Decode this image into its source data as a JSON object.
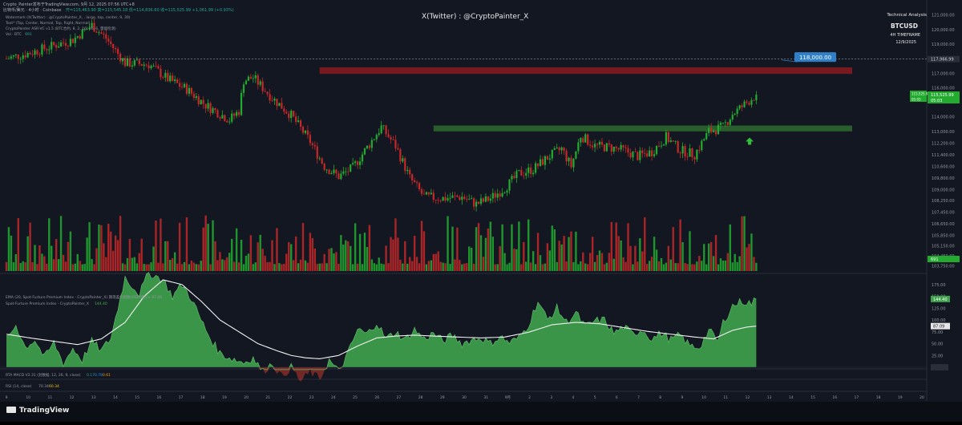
{
  "header": {
    "line1": "Crypto_Painter发布于TradingView.com, 9月 12, 2025 07:56 UTC+8",
    "symbol_line": "比特币/美元 · 4小时 · Coinbase",
    "symbol_values": "开=115,463.90  高=115,545.18  低=114,836.60  收=115,525.99 +1,061.99 (+0.93%)"
  },
  "legend": {
    "l1": "Watermark (X(Twitter) : @CryptoPainter_X, , large, top, center, 9, 30)",
    "l2": "Text* (Top, Center, Normal, Top, Right, Normal)",
    "l3": "CryptoPainter ASR-VC v1.5 (BTC合约, 8, 2, 16, 10, 6, 量能检测)",
    "l4_label": "Vol · BTC",
    "l4_value": "691"
  },
  "watermark": "X(Twitter) : @CryptoPainter_X",
  "info_box": {
    "title": "Technical Analysis",
    "symbol": "BTCUSD",
    "timeframe": "4H TIMEFRAME",
    "date": "12/9/2025"
  },
  "colors": {
    "bg": "#131722",
    "up": "#22ab2f",
    "down": "#c62828",
    "resistance_zone": "#8b1a1f",
    "support_zone": "#2e6b2e",
    "target_label": "#2f80c8",
    "ema_line": "#f2f2f2",
    "premium_fill": "#3fa34d",
    "premium_fill_neg": "#d23a2a"
  },
  "icons": {
    "up_arrow": "green-up-arrow-icon",
    "logo": "tradingview-logo-icon"
  },
  "chart_data": [
    {
      "type": "candlestick",
      "title": "比特币/美元 · 4小时 · Coinbase",
      "y_scale_ticks": [
        "121,000.00",
        "120,000.00",
        "119,000.00",
        "117,000.00",
        "116,000.00",
        "114,000.00",
        "113,000.00",
        "112,200.00",
        "111,400.00",
        "110,600.00",
        "109,800.00",
        "109,000.00",
        "108,250.00",
        "107,450.00",
        "106,650.00",
        "105,850.00",
        "105,150.00",
        "104,450.00",
        "103,750.00"
      ],
      "ylim": [
        103400,
        121700
      ],
      "x_ticks": [
        "9",
        "10",
        "11",
        "12",
        "13",
        "14",
        "15",
        "16",
        "17",
        "18",
        "19",
        "20",
        "21",
        "22",
        "23",
        "24",
        "25",
        "26",
        "27",
        "28",
        "29",
        "30",
        "31",
        "9月",
        "2",
        "3",
        "4",
        "5",
        "6",
        "7",
        "8",
        "9",
        "10",
        "11",
        "12",
        "13",
        "14",
        "15",
        "16",
        "17",
        "18",
        "19",
        "20"
      ],
      "price_markers": [
        {
          "label": "117,966.99",
          "value": 117966.99,
          "kind": "dashed-line"
        },
        {
          "label": "115,525.99",
          "value": 115525.99,
          "kind": "last-price"
        },
        {
          "label": "05:03",
          "kind": "countdown"
        },
        {
          "label": "691",
          "kind": "volume"
        }
      ],
      "zones": [
        {
          "name": "resistance",
          "from": 116950,
          "to": 117400,
          "color": "red"
        },
        {
          "name": "support",
          "from": 113000,
          "to": 113400,
          "color": "green"
        }
      ],
      "target_label": "118,000.00",
      "target": 118000,
      "candle_anchors": [
        [
          0,
          118000
        ],
        [
          10,
          118400
        ],
        [
          20,
          118900
        ],
        [
          28,
          119300
        ],
        [
          36,
          120300
        ],
        [
          42,
          119400
        ],
        [
          50,
          117700
        ],
        [
          60,
          117600
        ],
        [
          68,
          116600
        ],
        [
          76,
          115900
        ],
        [
          84,
          114800
        ],
        [
          94,
          113800
        ],
        [
          98,
          114400
        ],
        [
          100,
          116500
        ],
        [
          104,
          116700
        ],
        [
          112,
          115300
        ],
        [
          120,
          114100
        ],
        [
          128,
          112300
        ],
        [
          134,
          110600
        ],
        [
          140,
          109900
        ],
        [
          146,
          110500
        ],
        [
          152,
          111900
        ],
        [
          158,
          113300
        ],
        [
          164,
          112000
        ],
        [
          170,
          109800
        ],
        [
          176,
          108500
        ],
        [
          184,
          108400
        ],
        [
          192,
          108500
        ],
        [
          198,
          108000
        ],
        [
          204,
          108400
        ],
        [
          210,
          109100
        ],
        [
          216,
          110100
        ],
        [
          222,
          110400
        ],
        [
          228,
          111200
        ],
        [
          234,
          111800
        ],
        [
          238,
          110600
        ],
        [
          242,
          112700
        ],
        [
          248,
          112000
        ],
        [
          254,
          111900
        ],
        [
          260,
          111700
        ],
        [
          266,
          111300
        ],
        [
          272,
          111600
        ],
        [
          278,
          112600
        ],
        [
          284,
          111700
        ],
        [
          290,
          111400
        ],
        [
          296,
          113000
        ],
        [
          302,
          113300
        ],
        [
          306,
          114200
        ],
        [
          310,
          114700
        ],
        [
          316,
          115526
        ]
      ],
      "last_close": 115525.99
    },
    {
      "type": "area",
      "title": "EMA (20, Spot-Furture Premium Index - CryptoPainter_X) 期现差价指数USDT加权+ 87.09",
      "series": [
        {
          "name": "Spot-Furture Premium Index - CryptoPainter_X",
          "last": 144.4
        },
        {
          "name": "EMA (20, Spot-Furture Premium Index - CryptoPainter_X)",
          "last": 87.09
        }
      ],
      "y_ticks": [
        "175.00",
        "150.00",
        "125.00",
        "100.00",
        "75.00",
        "50.00",
        "25.00",
        "0.00"
      ],
      "ylim": [
        0,
        190
      ],
      "labels": [
        "144.40",
        "87.09"
      ],
      "premium_anchors": [
        [
          0,
          58
        ],
        [
          4,
          90
        ],
        [
          8,
          42
        ],
        [
          12,
          58
        ],
        [
          16,
          20
        ],
        [
          20,
          52
        ],
        [
          24,
          8
        ],
        [
          28,
          40
        ],
        [
          32,
          15
        ],
        [
          36,
          55
        ],
        [
          40,
          35
        ],
        [
          44,
          62
        ],
        [
          50,
          190
        ],
        [
          56,
          155
        ],
        [
          60,
          200
        ],
        [
          66,
          185
        ],
        [
          70,
          150
        ],
        [
          74,
          175
        ],
        [
          78,
          145
        ],
        [
          82,
          100
        ],
        [
          86,
          60
        ],
        [
          90,
          30
        ],
        [
          94,
          20
        ],
        [
          100,
          10
        ],
        [
          104,
          20
        ],
        [
          108,
          -10
        ],
        [
          112,
          8
        ],
        [
          116,
          -20
        ],
        [
          120,
          0
        ],
        [
          124,
          -30
        ],
        [
          128,
          -10
        ],
        [
          132,
          -25
        ],
        [
          136,
          15
        ],
        [
          140,
          -10
        ],
        [
          144,
          30
        ],
        [
          148,
          80
        ],
        [
          152,
          70
        ],
        [
          156,
          95
        ],
        [
          160,
          60
        ],
        [
          164,
          75
        ],
        [
          168,
          58
        ],
        [
          172,
          80
        ],
        [
          176,
          60
        ],
        [
          180,
          72
        ],
        [
          184,
          55
        ],
        [
          188,
          68
        ],
        [
          192,
          50
        ],
        [
          196,
          58
        ],
        [
          200,
          62
        ],
        [
          204,
          50
        ],
        [
          208,
          65
        ],
        [
          212,
          52
        ],
        [
          216,
          62
        ],
        [
          220,
          90
        ],
        [
          224,
          140
        ],
        [
          228,
          100
        ],
        [
          232,
          125
        ],
        [
          236,
          95
        ],
        [
          240,
          115
        ],
        [
          244,
          85
        ],
        [
          248,
          98
        ],
        [
          252,
          100
        ],
        [
          256,
          72
        ],
        [
          260,
          85
        ],
        [
          264,
          70
        ],
        [
          268,
          80
        ],
        [
          272,
          60
        ],
        [
          276,
          72
        ],
        [
          280,
          58
        ],
        [
          284,
          68
        ],
        [
          288,
          45
        ],
        [
          292,
          42
        ],
        [
          296,
          78
        ],
        [
          300,
          55
        ],
        [
          302,
          95
        ],
        [
          306,
          130
        ],
        [
          310,
          140
        ],
        [
          314,
          135
        ],
        [
          316,
          144.4
        ]
      ],
      "ema_anchors": [
        [
          0,
          70
        ],
        [
          10,
          62
        ],
        [
          20,
          55
        ],
        [
          30,
          48
        ],
        [
          40,
          60
        ],
        [
          50,
          95
        ],
        [
          58,
          150
        ],
        [
          66,
          185
        ],
        [
          74,
          175
        ],
        [
          82,
          140
        ],
        [
          90,
          100
        ],
        [
          98,
          75
        ],
        [
          106,
          50
        ],
        [
          114,
          35
        ],
        [
          120,
          25
        ],
        [
          126,
          20
        ],
        [
          132,
          18
        ],
        [
          140,
          25
        ],
        [
          148,
          45
        ],
        [
          156,
          62
        ],
        [
          164,
          66
        ],
        [
          172,
          68
        ],
        [
          180,
          66
        ],
        [
          190,
          64
        ],
        [
          200,
          62
        ],
        [
          210,
          64
        ],
        [
          220,
          74
        ],
        [
          230,
          90
        ],
        [
          240,
          95
        ],
        [
          250,
          92
        ],
        [
          260,
          84
        ],
        [
          270,
          76
        ],
        [
          280,
          70
        ],
        [
          290,
          64
        ],
        [
          298,
          60
        ],
        [
          306,
          78
        ],
        [
          312,
          85
        ],
        [
          316,
          87.09
        ]
      ]
    },
    {
      "type": "table",
      "title": "RTA MACD V2.31 (封数据, 12, 26, 9, close)",
      "values": [
        "0.17",
        "0.78",
        "0.61"
      ]
    },
    {
      "type": "table",
      "title": "RSI (14, close)",
      "values": [
        "70.34",
        "60.34"
      ]
    }
  ],
  "footer": {
    "brand": "TradingView"
  }
}
